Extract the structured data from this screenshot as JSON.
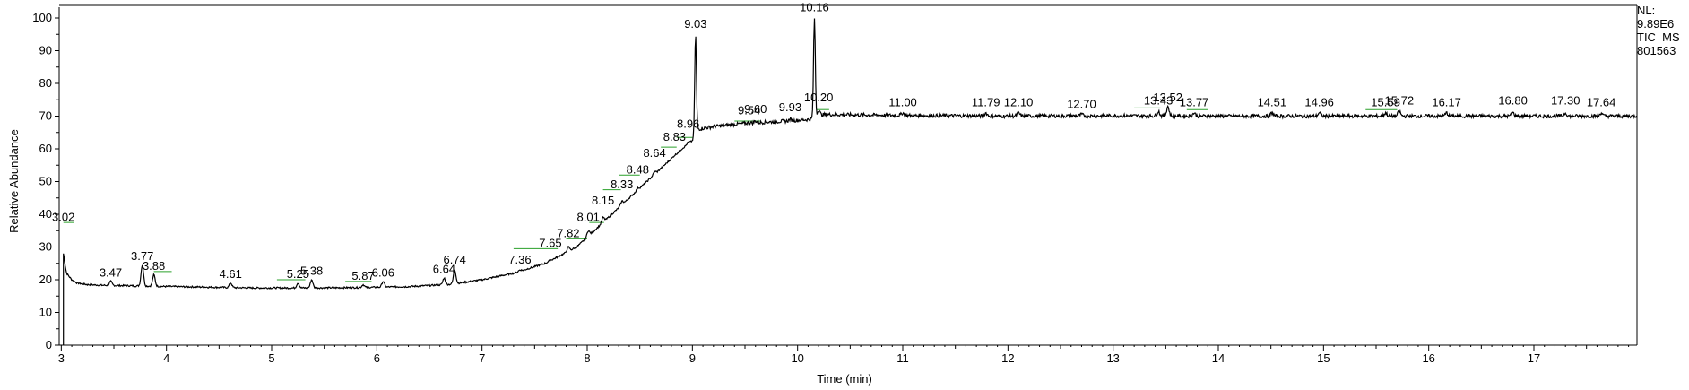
{
  "chart_data": {
    "type": "line",
    "xlabel": "Time (min)",
    "ylabel": "Relative Abundance",
    "xlim": [
      2.98,
      17.98
    ],
    "ylim": [
      0,
      100
    ],
    "x_ticks": [
      3,
      4,
      5,
      6,
      7,
      8,
      9,
      10,
      11,
      12,
      13,
      14,
      15,
      16,
      17
    ],
    "y_ticks": [
      0,
      10,
      20,
      30,
      40,
      50,
      60,
      70,
      80,
      90,
      100
    ],
    "grid": false,
    "info": {
      "nl_label": "NL:",
      "nl_value": "9.89E6",
      "filter": "TIC  MS",
      "sample": "801563"
    },
    "baseline_profile": [
      [
        3.02,
        26
      ],
      [
        3.05,
        22
      ],
      [
        3.1,
        20
      ],
      [
        3.15,
        19
      ],
      [
        3.25,
        18.5
      ],
      [
        3.4,
        18.3
      ],
      [
        3.6,
        18.2
      ],
      [
        3.9,
        18.0
      ],
      [
        4.3,
        17.8
      ],
      [
        4.8,
        17.5
      ],
      [
        5.3,
        17.5
      ],
      [
        5.8,
        17.6
      ],
      [
        6.3,
        17.9
      ],
      [
        6.7,
        18.6
      ],
      [
        7.0,
        20.0
      ],
      [
        7.3,
        22.0
      ],
      [
        7.6,
        25.0
      ],
      [
        7.9,
        30.0
      ],
      [
        8.1,
        36.0
      ],
      [
        8.3,
        42.0
      ],
      [
        8.5,
        48.0
      ],
      [
        8.7,
        54.0
      ],
      [
        8.9,
        60.0
      ],
      [
        9.0,
        62.5
      ],
      [
        9.05,
        66.0
      ],
      [
        9.2,
        66.8
      ],
      [
        9.5,
        67.8
      ],
      [
        9.9,
        68.5
      ],
      [
        10.12,
        69.0
      ],
      [
        10.25,
        70.5
      ],
      [
        11.0,
        70.2
      ],
      [
        12.0,
        70.0
      ],
      [
        13.0,
        70.1
      ],
      [
        14.0,
        70.0
      ],
      [
        15.0,
        70.0
      ],
      [
        16.0,
        70.0
      ],
      [
        17.0,
        70.0
      ],
      [
        17.98,
        70.0
      ]
    ],
    "peaks": [
      {
        "rt": "3.02",
        "x": 3.02,
        "height": 28,
        "label_y": 38
      },
      {
        "rt": "3.47",
        "x": 3.47,
        "height": 19.5,
        "label_y": 21
      },
      {
        "rt": "3.77",
        "x": 3.77,
        "height": 24.5,
        "label_y": 26
      },
      {
        "rt": "3.88",
        "x": 3.88,
        "height": 21.5,
        "label_y": 23
      },
      {
        "rt": "4.61",
        "x": 4.61,
        "height": 19.0,
        "label_y": 20.5
      },
      {
        "rt": "5.25",
        "x": 5.25,
        "height": 19.0,
        "label_y": 20.5
      },
      {
        "rt": "5.38",
        "x": 5.38,
        "height": 20.0,
        "label_y": 21.5
      },
      {
        "rt": "5.87",
        "x": 5.87,
        "height": 18.5,
        "label_y": 20
      },
      {
        "rt": "6.06",
        "x": 6.06,
        "height": 19.5,
        "label_y": 21
      },
      {
        "rt": "6.64",
        "x": 6.64,
        "height": 20.5,
        "label_y": 22
      },
      {
        "rt": "6.74",
        "x": 6.74,
        "height": 23.0,
        "label_y": 25
      },
      {
        "rt": "7.36",
        "x": 7.36,
        "height": 23.0,
        "label_y": 25
      },
      {
        "rt": "7.65",
        "x": 7.65,
        "height": 26.0,
        "label_y": 30
      },
      {
        "rt": "7.82",
        "x": 7.82,
        "height": 30.0,
        "label_y": 33
      },
      {
        "rt": "8.01",
        "x": 8.01,
        "height": 35.0,
        "label_y": 38
      },
      {
        "rt": "8.15",
        "x": 8.15,
        "height": 39.0,
        "label_y": 43
      },
      {
        "rt": "8.33",
        "x": 8.33,
        "height": 44.0,
        "label_y": 48
      },
      {
        "rt": "8.48",
        "x": 8.48,
        "height": 48.0,
        "label_y": 52.5
      },
      {
        "rt": "8.64",
        "x": 8.64,
        "height": 53.0,
        "label_y": 57.5
      },
      {
        "rt": "8.83",
        "x": 8.83,
        "height": 58.0,
        "label_y": 62.5
      },
      {
        "rt": "8.96",
        "x": 8.96,
        "height": 62.0,
        "label_y": 66.5
      },
      {
        "rt": "9.03",
        "x": 9.03,
        "height": 95,
        "label_y": 97
      },
      {
        "rt": "9.54",
        "x": 9.54,
        "height": 68.0,
        "label_y": 70.5
      },
      {
        "rt": "9.60",
        "x": 9.6,
        "height": 68.5,
        "label_y": 71
      },
      {
        "rt": "9.93",
        "x": 9.93,
        "height": 69.0,
        "label_y": 71.5
      },
      {
        "rt": "10.16",
        "x": 10.16,
        "height": 100,
        "label_y": 102
      },
      {
        "rt": "10.20",
        "x": 10.2,
        "height": 72.0,
        "label_y": 74.5
      },
      {
        "rt": "11.00",
        "x": 11.0,
        "height": 71.0,
        "label_y": 73
      },
      {
        "rt": "11.79",
        "x": 11.79,
        "height": 71.0,
        "label_y": 73
      },
      {
        "rt": "12.10",
        "x": 12.1,
        "height": 71.0,
        "label_y": 73
      },
      {
        "rt": "12.70",
        "x": 12.7,
        "height": 70.5,
        "label_y": 72.5
      },
      {
        "rt": "13.43",
        "x": 13.43,
        "height": 71.5,
        "label_y": 73.5
      },
      {
        "rt": "13.52",
        "x": 13.52,
        "height": 73.0,
        "label_y": 74.5
      },
      {
        "rt": "13.77",
        "x": 13.77,
        "height": 71.0,
        "label_y": 73
      },
      {
        "rt": "14.51",
        "x": 14.51,
        "height": 71.0,
        "label_y": 73
      },
      {
        "rt": "14.96",
        "x": 14.96,
        "height": 71.0,
        "label_y": 73
      },
      {
        "rt": "15.59",
        "x": 15.59,
        "height": 71.0,
        "label_y": 73
      },
      {
        "rt": "15.72",
        "x": 15.72,
        "height": 71.5,
        "label_y": 73.5
      },
      {
        "rt": "16.17",
        "x": 16.17,
        "height": 71.0,
        "label_y": 73
      },
      {
        "rt": "16.80",
        "x": 16.8,
        "height": 71.0,
        "label_y": 73.5
      },
      {
        "rt": "17.30",
        "x": 17.3,
        "height": 71.0,
        "label_y": 73.5
      },
      {
        "rt": "17.64",
        "x": 17.64,
        "height": 71.0,
        "label_y": 73
      }
    ],
    "integration_marks": [
      {
        "x1": 3.02,
        "x2": 3.12,
        "y": 37.5
      },
      {
        "x1": 3.88,
        "x2": 4.05,
        "y": 22.5
      },
      {
        "x1": 5.05,
        "x2": 5.32,
        "y": 20
      },
      {
        "x1": 5.7,
        "x2": 5.95,
        "y": 19.5
      },
      {
        "x1": 7.3,
        "x2": 7.72,
        "y": 29.5
      },
      {
        "x1": 7.8,
        "x2": 8.0,
        "y": 32.5
      },
      {
        "x1": 8.02,
        "x2": 8.16,
        "y": 37.5
      },
      {
        "x1": 8.15,
        "x2": 8.32,
        "y": 47.5
      },
      {
        "x1": 8.3,
        "x2": 8.5,
        "y": 52.0
      },
      {
        "x1": 8.7,
        "x2": 8.85,
        "y": 60.5
      },
      {
        "x1": 8.85,
        "x2": 9.0,
        "y": 63.5
      },
      {
        "x1": 9.4,
        "x2": 9.65,
        "y": 68.5
      },
      {
        "x1": 10.18,
        "x2": 10.3,
        "y": 72.0
      },
      {
        "x1": 13.2,
        "x2": 13.45,
        "y": 72.5
      },
      {
        "x1": 13.7,
        "x2": 13.9,
        "y": 72.0
      },
      {
        "x1": 15.4,
        "x2": 15.7,
        "y": 72.0
      }
    ]
  }
}
